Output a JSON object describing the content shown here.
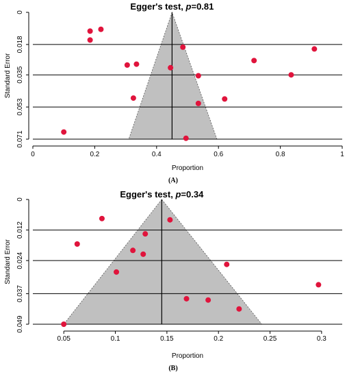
{
  "colors": {
    "point": "#e0143c",
    "funnel": "#c0c0c0",
    "line": "#000000"
  },
  "chart_data": [
    {
      "type": "scatter",
      "panel_label": "(A)",
      "title_prefix": "Egger's test, ",
      "title_p": "p",
      "title_suffix": "=0.81",
      "xlabel": "Proportion",
      "ylabel": "Standard Error",
      "xlim": [
        0,
        1
      ],
      "ylim": [
        0,
        0.071
      ],
      "y_inverted": true,
      "grid": true,
      "xticks": [
        0,
        0.2,
        0.4,
        0.6,
        0.8,
        1
      ],
      "xtick_labels": [
        "0",
        "0.2",
        "0.4",
        "0.6",
        "0.8",
        "1"
      ],
      "yticks": [
        0,
        0.018,
        0.035,
        0.053,
        0.071
      ],
      "ytick_labels": [
        "0",
        "0.018",
        "0.035",
        "0.053",
        "0.071"
      ],
      "pooled": 0.45,
      "funnel_base": [
        0.31,
        0.595
      ],
      "points": [
        {
          "x": 0.185,
          "y": 0.0105
        },
        {
          "x": 0.22,
          "y": 0.0095
        },
        {
          "x": 0.185,
          "y": 0.0155
        },
        {
          "x": 0.485,
          "y": 0.0195
        },
        {
          "x": 0.91,
          "y": 0.0205
        },
        {
          "x": 0.715,
          "y": 0.027
        },
        {
          "x": 0.305,
          "y": 0.0295
        },
        {
          "x": 0.335,
          "y": 0.029
        },
        {
          "x": 0.445,
          "y": 0.031
        },
        {
          "x": 0.535,
          "y": 0.0355
        },
        {
          "x": 0.835,
          "y": 0.035
        },
        {
          "x": 0.325,
          "y": 0.048
        },
        {
          "x": 0.62,
          "y": 0.0485
        },
        {
          "x": 0.535,
          "y": 0.051
        },
        {
          "x": 0.1,
          "y": 0.067
        },
        {
          "x": 0.495,
          "y": 0.0705
        }
      ]
    },
    {
      "type": "scatter",
      "panel_label": "(B)",
      "title_prefix": "Egger's test, ",
      "title_p": "p",
      "title_suffix": "=0.34",
      "xlabel": "Proportion",
      "ylabel": "Standard Error",
      "xlim": [
        0.02,
        0.32
      ],
      "ylim": [
        0,
        0.049
      ],
      "y_inverted": true,
      "grid": true,
      "xticks": [
        0.05,
        0.1,
        0.15,
        0.2,
        0.25,
        0.3
      ],
      "xtick_labels": [
        "0.05",
        "0.1",
        "0.15",
        "0.2",
        "0.25",
        "0.3"
      ],
      "yticks": [
        0,
        0.012,
        0.024,
        0.037,
        0.049
      ],
      "ytick_labels": [
        "0",
        "0.012",
        "0.024",
        "0.037",
        "0.049"
      ],
      "pooled": 0.145,
      "funnel_base": [
        0.05,
        0.242
      ],
      "points": [
        {
          "x": 0.087,
          "y": 0.0075
        },
        {
          "x": 0.153,
          "y": 0.008
        },
        {
          "x": 0.129,
          "y": 0.0135
        },
        {
          "x": 0.063,
          "y": 0.0175
        },
        {
          "x": 0.117,
          "y": 0.02
        },
        {
          "x": 0.127,
          "y": 0.0215
        },
        {
          "x": 0.208,
          "y": 0.0255
        },
        {
          "x": 0.101,
          "y": 0.0285
        },
        {
          "x": 0.297,
          "y": 0.0335
        },
        {
          "x": 0.169,
          "y": 0.039
        },
        {
          "x": 0.19,
          "y": 0.0395
        },
        {
          "x": 0.22,
          "y": 0.043
        },
        {
          "x": 0.05,
          "y": 0.049
        }
      ]
    }
  ]
}
